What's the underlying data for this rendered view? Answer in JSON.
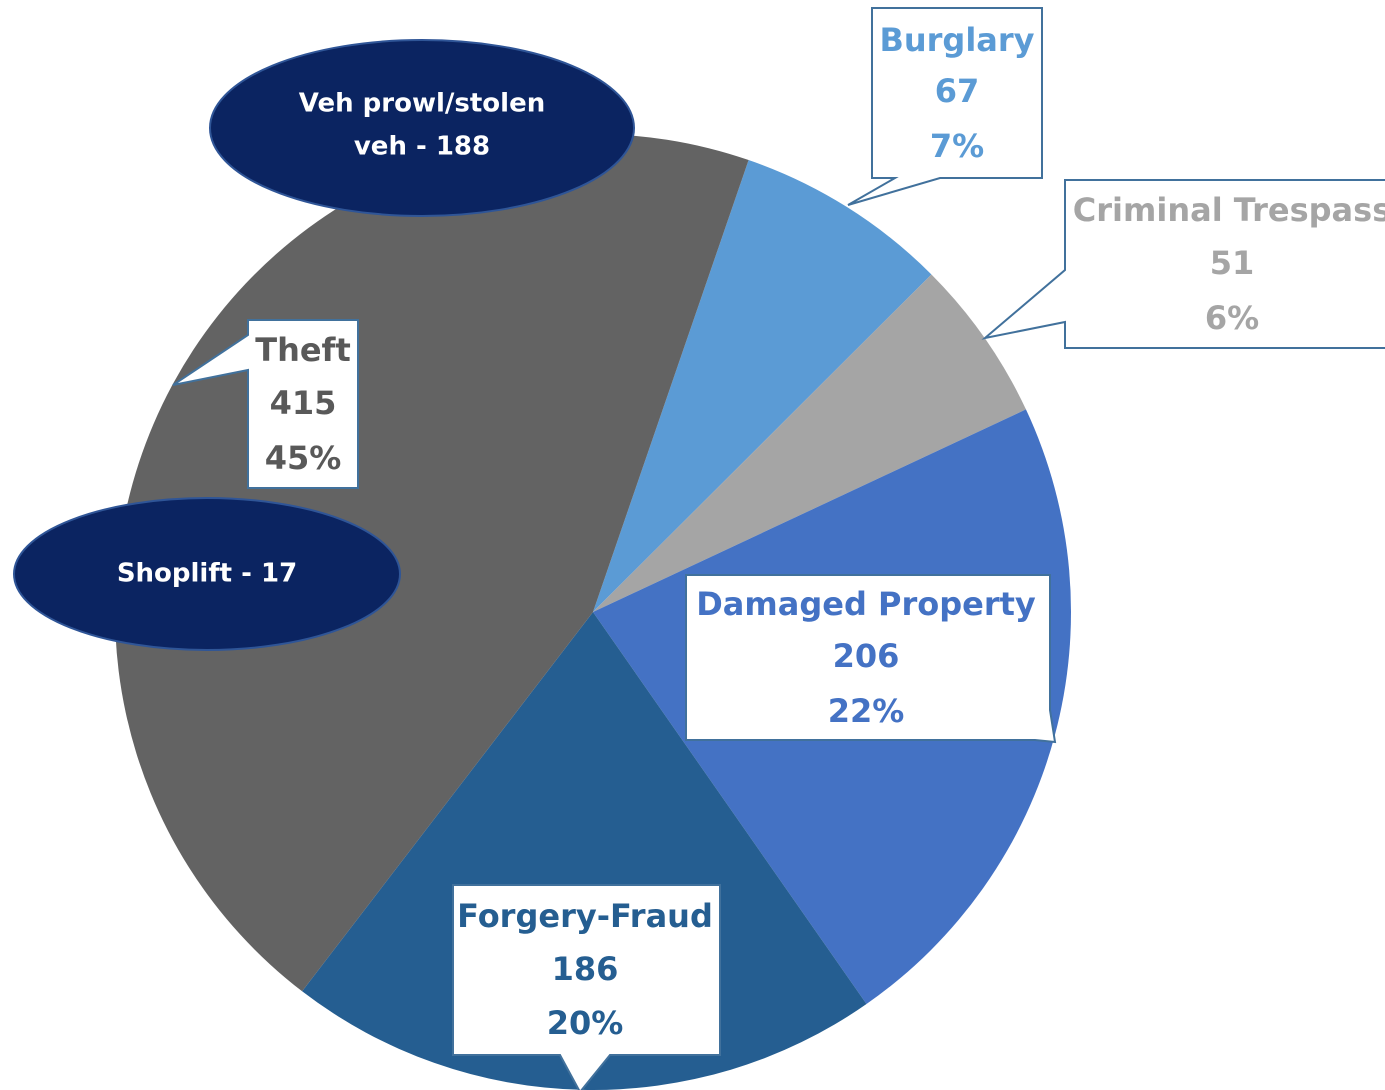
{
  "chart_data": {
    "type": "pie",
    "categories": [
      "Burglary",
      "Criminal Trespass",
      "Damaged Property",
      "Forgery-Fraud",
      "Theft"
    ],
    "values": [
      67,
      51,
      206,
      186,
      415
    ],
    "percent_labels": [
      "7%",
      "6%",
      "22%",
      "20%",
      "45%"
    ],
    "colors": [
      "#5b9bd5",
      "#a5a5a5",
      "#4472c4",
      "#255e91",
      "#636363"
    ],
    "annotations": [
      {
        "lines": [
          "Veh prowl/stolen",
          "veh - 188"
        ]
      },
      {
        "lines": [
          "Shoplift - 17"
        ]
      }
    ]
  }
}
